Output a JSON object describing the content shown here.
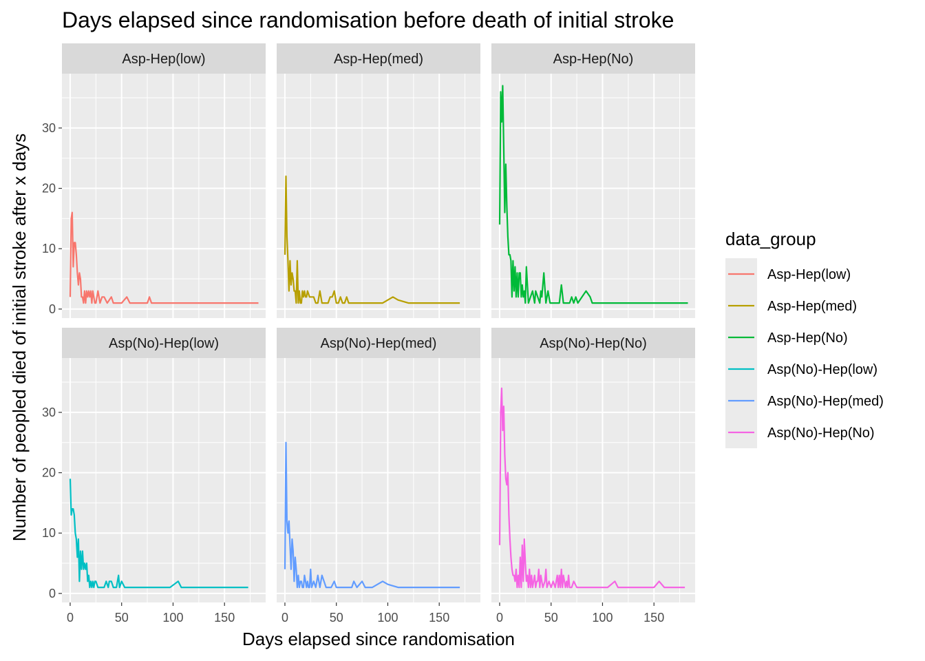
{
  "chart_data": {
    "type": "line",
    "title": "Days elapsed since randomisation before death of initial stroke",
    "xlabel": "Days elapsed since randomisation",
    "ylabel": "Number of peopled died of initial stroke after x days",
    "xlim": [
      -8,
      190
    ],
    "ylim": [
      -1.5,
      39
    ],
    "x_ticks": [
      0,
      50,
      100,
      150
    ],
    "y_ticks": [
      0,
      10,
      20,
      30
    ],
    "grid": true,
    "facet_layout": "2 rows x 3 columns",
    "legend": {
      "title": "data_group",
      "position": "right"
    },
    "series": [
      {
        "name": "Asp-Hep(low)",
        "color": "#F8766D",
        "points": [
          [
            0,
            2
          ],
          [
            1,
            15
          ],
          [
            2,
            16
          ],
          [
            3,
            7
          ],
          [
            4,
            11
          ],
          [
            5,
            11
          ],
          [
            6,
            9
          ],
          [
            7,
            6
          ],
          [
            8,
            4
          ],
          [
            9,
            6
          ],
          [
            10,
            5
          ],
          [
            11,
            2
          ],
          [
            12,
            2
          ],
          [
            13,
            1
          ],
          [
            14,
            3
          ],
          [
            15,
            1
          ],
          [
            16,
            3
          ],
          [
            17,
            2
          ],
          [
            18,
            3
          ],
          [
            19,
            2
          ],
          [
            20,
            3
          ],
          [
            21,
            1
          ],
          [
            22,
            3
          ],
          [
            23,
            2
          ],
          [
            24,
            1
          ],
          [
            25,
            1
          ],
          [
            27,
            3
          ],
          [
            29,
            1
          ],
          [
            31,
            2
          ],
          [
            33,
            2
          ],
          [
            36,
            1
          ],
          [
            40,
            2
          ],
          [
            42,
            1
          ],
          [
            45,
            1
          ],
          [
            47,
            1
          ],
          [
            50,
            1
          ],
          [
            55,
            2
          ],
          [
            58,
            1
          ],
          [
            65,
            1
          ],
          [
            75,
            1
          ],
          [
            77,
            2
          ],
          [
            79,
            1
          ],
          [
            90,
            1
          ],
          [
            110,
            1
          ],
          [
            130,
            1
          ],
          [
            150,
            1
          ],
          [
            170,
            1
          ],
          [
            183,
            1
          ]
        ]
      },
      {
        "name": "Asp-Hep(med)",
        "color": "#B79F00",
        "points": [
          [
            0,
            9
          ],
          [
            1,
            22
          ],
          [
            2,
            12
          ],
          [
            3,
            8
          ],
          [
            4,
            3
          ],
          [
            5,
            8
          ],
          [
            6,
            4
          ],
          [
            7,
            6
          ],
          [
            8,
            5
          ],
          [
            9,
            3
          ],
          [
            10,
            3
          ],
          [
            11,
            1
          ],
          [
            12,
            8
          ],
          [
            13,
            1
          ],
          [
            14,
            3
          ],
          [
            15,
            1
          ],
          [
            16,
            1
          ],
          [
            17,
            3
          ],
          [
            18,
            2
          ],
          [
            19,
            3
          ],
          [
            20,
            2
          ],
          [
            21,
            2
          ],
          [
            22,
            3
          ],
          [
            24,
            2
          ],
          [
            26,
            2
          ],
          [
            28,
            2
          ],
          [
            30,
            1
          ],
          [
            32,
            1
          ],
          [
            34,
            3
          ],
          [
            36,
            1
          ],
          [
            40,
            1
          ],
          [
            42,
            1
          ],
          [
            44,
            2
          ],
          [
            46,
            2
          ],
          [
            48,
            3
          ],
          [
            50,
            1
          ],
          [
            52,
            1
          ],
          [
            54,
            2
          ],
          [
            56,
            1
          ],
          [
            58,
            1
          ],
          [
            60,
            2
          ],
          [
            62,
            1
          ],
          [
            70,
            1
          ],
          [
            80,
            1
          ],
          [
            95,
            1
          ],
          [
            105,
            2
          ],
          [
            110,
            1.5
          ],
          [
            120,
            1
          ],
          [
            140,
            1
          ],
          [
            160,
            1
          ],
          [
            170,
            1
          ]
        ]
      },
      {
        "name": "Asp-Hep(No)",
        "color": "#00BA38",
        "points": [
          [
            0,
            14
          ],
          [
            1,
            36
          ],
          [
            2,
            31
          ],
          [
            3,
            37
          ],
          [
            4,
            27
          ],
          [
            5,
            16
          ],
          [
            6,
            24
          ],
          [
            7,
            17
          ],
          [
            8,
            12
          ],
          [
            9,
            9
          ],
          [
            10,
            9
          ],
          [
            11,
            8
          ],
          [
            12,
            2
          ],
          [
            13,
            8
          ],
          [
            14,
            3
          ],
          [
            15,
            7
          ],
          [
            16,
            2
          ],
          [
            17,
            6
          ],
          [
            18,
            2
          ],
          [
            19,
            6
          ],
          [
            20,
            6
          ],
          [
            21,
            2
          ],
          [
            22,
            4
          ],
          [
            23,
            2
          ],
          [
            24,
            3
          ],
          [
            25,
            1
          ],
          [
            26,
            7
          ],
          [
            27,
            4
          ],
          [
            28,
            1
          ],
          [
            30,
            2
          ],
          [
            32,
            3
          ],
          [
            34,
            1
          ],
          [
            35,
            3
          ],
          [
            37,
            2
          ],
          [
            39,
            1
          ],
          [
            40,
            3
          ],
          [
            41,
            2
          ],
          [
            43,
            6
          ],
          [
            45,
            1
          ],
          [
            47,
            3
          ],
          [
            49,
            1
          ],
          [
            50,
            1
          ],
          [
            52,
            1
          ],
          [
            55,
            1
          ],
          [
            58,
            1
          ],
          [
            60,
            4
          ],
          [
            62,
            1
          ],
          [
            65,
            1
          ],
          [
            68,
            1
          ],
          [
            70,
            2
          ],
          [
            72,
            1
          ],
          [
            74,
            2
          ],
          [
            76,
            1
          ],
          [
            80,
            2
          ],
          [
            84,
            3
          ],
          [
            88,
            2
          ],
          [
            90,
            1
          ],
          [
            100,
            1
          ],
          [
            120,
            1
          ],
          [
            140,
            1
          ],
          [
            160,
            1
          ],
          [
            183,
            1
          ]
        ]
      },
      {
        "name": "Asp(No)-Hep(low)",
        "color": "#00BFC4",
        "points": [
          [
            0,
            19
          ],
          [
            1,
            13
          ],
          [
            2,
            14
          ],
          [
            3,
            14
          ],
          [
            4,
            13
          ],
          [
            5,
            10
          ],
          [
            6,
            9
          ],
          [
            7,
            6
          ],
          [
            8,
            9
          ],
          [
            9,
            2
          ],
          [
            10,
            7
          ],
          [
            11,
            4
          ],
          [
            12,
            7
          ],
          [
            13,
            4
          ],
          [
            14,
            5
          ],
          [
            15,
            4
          ],
          [
            16,
            5
          ],
          [
            17,
            2
          ],
          [
            18,
            3
          ],
          [
            19,
            1
          ],
          [
            20,
            2
          ],
          [
            21,
            1
          ],
          [
            22,
            2
          ],
          [
            23,
            1
          ],
          [
            24,
            2
          ],
          [
            25,
            2
          ],
          [
            27,
            1
          ],
          [
            30,
            1
          ],
          [
            33,
            1
          ],
          [
            35,
            2
          ],
          [
            37,
            1
          ],
          [
            38,
            2
          ],
          [
            40,
            2
          ],
          [
            42,
            1
          ],
          [
            45,
            1
          ],
          [
            47,
            3
          ],
          [
            48,
            1
          ],
          [
            50,
            2
          ],
          [
            53,
            1
          ],
          [
            60,
            1
          ],
          [
            70,
            1
          ],
          [
            80,
            1
          ],
          [
            90,
            1
          ],
          [
            97,
            1
          ],
          [
            105,
            2
          ],
          [
            108,
            1
          ],
          [
            120,
            1
          ],
          [
            140,
            1
          ],
          [
            160,
            1
          ],
          [
            173,
            1
          ]
        ]
      },
      {
        "name": "Asp(No)-Hep(med)",
        "color": "#619CFF",
        "points": [
          [
            0,
            4
          ],
          [
            1,
            25
          ],
          [
            2,
            12
          ],
          [
            3,
            10
          ],
          [
            4,
            12
          ],
          [
            5,
            8
          ],
          [
            6,
            4
          ],
          [
            7,
            9
          ],
          [
            8,
            7
          ],
          [
            9,
            2
          ],
          [
            10,
            6
          ],
          [
            11,
            4
          ],
          [
            12,
            1
          ],
          [
            13,
            3
          ],
          [
            14,
            1
          ],
          [
            15,
            2
          ],
          [
            16,
            2
          ],
          [
            17,
            1
          ],
          [
            18,
            1
          ],
          [
            19,
            3
          ],
          [
            20,
            2
          ],
          [
            21,
            1
          ],
          [
            22,
            2
          ],
          [
            23,
            1
          ],
          [
            24,
            1
          ],
          [
            25,
            4
          ],
          [
            26,
            1
          ],
          [
            28,
            2
          ],
          [
            30,
            1
          ],
          [
            32,
            3
          ],
          [
            34,
            1
          ],
          [
            36,
            3
          ],
          [
            38,
            2
          ],
          [
            40,
            1
          ],
          [
            42,
            1
          ],
          [
            45,
            1
          ],
          [
            48,
            2
          ],
          [
            50,
            1
          ],
          [
            55,
            1
          ],
          [
            60,
            1
          ],
          [
            65,
            1
          ],
          [
            67,
            2
          ],
          [
            70,
            1
          ],
          [
            75,
            2
          ],
          [
            78,
            1
          ],
          [
            85,
            1
          ],
          [
            95,
            2
          ],
          [
            100,
            1.5
          ],
          [
            110,
            1
          ],
          [
            120,
            1
          ],
          [
            140,
            1
          ],
          [
            160,
            1
          ],
          [
            170,
            1
          ]
        ]
      },
      {
        "name": "Asp(No)-Hep(No)",
        "color": "#F564E3",
        "points": [
          [
            0,
            8
          ],
          [
            1,
            30
          ],
          [
            2,
            34
          ],
          [
            3,
            27
          ],
          [
            4,
            31
          ],
          [
            5,
            23
          ],
          [
            6,
            19
          ],
          [
            7,
            18
          ],
          [
            8,
            20
          ],
          [
            9,
            13
          ],
          [
            10,
            9
          ],
          [
            11,
            6
          ],
          [
            12,
            4
          ],
          [
            13,
            3
          ],
          [
            14,
            3
          ],
          [
            15,
            2
          ],
          [
            16,
            4
          ],
          [
            17,
            1
          ],
          [
            18,
            3
          ],
          [
            19,
            1
          ],
          [
            20,
            6
          ],
          [
            21,
            1
          ],
          [
            22,
            8
          ],
          [
            23,
            2
          ],
          [
            24,
            9
          ],
          [
            25,
            5
          ],
          [
            26,
            2
          ],
          [
            27,
            3
          ],
          [
            28,
            1
          ],
          [
            29,
            4
          ],
          [
            30,
            1
          ],
          [
            31,
            3
          ],
          [
            32,
            1
          ],
          [
            33,
            2
          ],
          [
            34,
            3
          ],
          [
            35,
            1
          ],
          [
            36,
            2
          ],
          [
            37,
            2
          ],
          [
            38,
            4
          ],
          [
            39,
            1
          ],
          [
            40,
            3
          ],
          [
            42,
            1
          ],
          [
            44,
            2
          ],
          [
            45,
            4
          ],
          [
            46,
            1
          ],
          [
            48,
            2
          ],
          [
            50,
            1
          ],
          [
            52,
            2
          ],
          [
            54,
            1
          ],
          [
            56,
            3
          ],
          [
            57,
            1
          ],
          [
            58,
            3
          ],
          [
            59,
            1
          ],
          [
            60,
            4
          ],
          [
            61,
            1
          ],
          [
            62,
            3
          ],
          [
            63,
            2
          ],
          [
            64,
            1
          ],
          [
            65,
            2
          ],
          [
            66,
            1
          ],
          [
            67,
            3
          ],
          [
            68,
            1
          ],
          [
            70,
            1
          ],
          [
            72,
            2
          ],
          [
            75,
            1
          ],
          [
            80,
            1
          ],
          [
            90,
            1
          ],
          [
            105,
            1
          ],
          [
            112,
            2
          ],
          [
            115,
            1
          ],
          [
            130,
            1
          ],
          [
            150,
            1
          ],
          [
            155,
            2
          ],
          [
            160,
            1
          ],
          [
            170,
            1
          ],
          [
            180,
            1
          ]
        ]
      }
    ]
  }
}
